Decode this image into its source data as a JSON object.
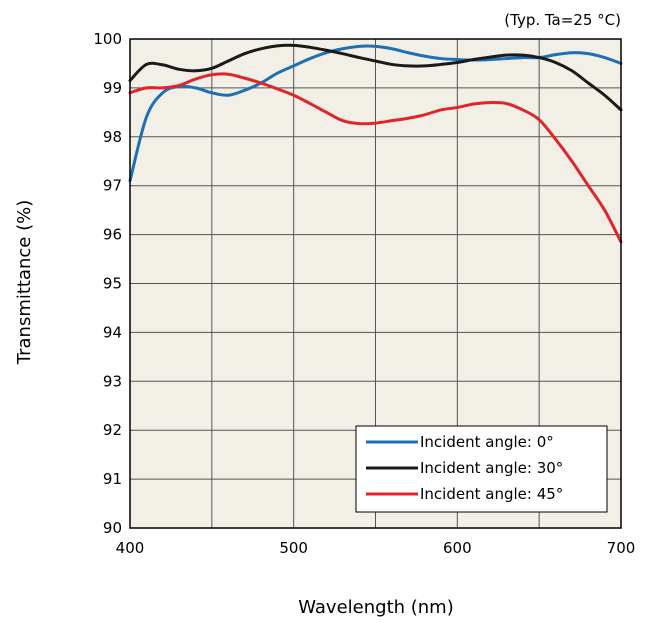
{
  "chart_data": {
    "type": "line",
    "title": "",
    "note": "(Typ. Ta=25 °C)",
    "xlabel": "Wavelength (nm)",
    "ylabel": "Transmittance (%)",
    "xlim": [
      400,
      700
    ],
    "ylim": [
      90,
      100
    ],
    "x_ticks": [
      400,
      500,
      600,
      700
    ],
    "x_gridlines": [
      400,
      450,
      500,
      550,
      600,
      650,
      700
    ],
    "y_ticks": [
      90,
      91,
      92,
      93,
      94,
      95,
      96,
      97,
      98,
      99,
      100
    ],
    "grid": true,
    "plot_background": "#f1efe6",
    "legend_position": "bottom-right",
    "series": [
      {
        "name": "Incident angle: 0°",
        "color": "#1f6fb4",
        "x": [
          400,
          410,
          420,
          430,
          440,
          450,
          460,
          470,
          480,
          490,
          500,
          510,
          520,
          530,
          540,
          550,
          560,
          570,
          580,
          590,
          600,
          610,
          620,
          630,
          640,
          650,
          660,
          670,
          680,
          690,
          700
        ],
        "y": [
          97.1,
          98.4,
          98.9,
          99.03,
          99.0,
          98.9,
          98.85,
          98.95,
          99.1,
          99.3,
          99.45,
          99.6,
          99.72,
          99.8,
          99.85,
          99.85,
          99.8,
          99.72,
          99.65,
          99.6,
          99.58,
          99.57,
          99.58,
          99.6,
          99.62,
          99.62,
          99.68,
          99.72,
          99.7,
          99.62,
          99.5
        ]
      },
      {
        "name": "Incident angle: 30°",
        "color": "#1a1a1a",
        "x": [
          400,
          410,
          420,
          430,
          440,
          450,
          460,
          470,
          480,
          490,
          500,
          510,
          520,
          530,
          540,
          550,
          560,
          570,
          580,
          590,
          600,
          610,
          620,
          630,
          640,
          650,
          660,
          670,
          680,
          690,
          700
        ],
        "y": [
          99.15,
          99.48,
          99.47,
          99.38,
          99.35,
          99.4,
          99.55,
          99.7,
          99.8,
          99.86,
          99.87,
          99.83,
          99.77,
          99.7,
          99.62,
          99.55,
          99.48,
          99.45,
          99.45,
          99.48,
          99.52,
          99.58,
          99.63,
          99.67,
          99.67,
          99.62,
          99.52,
          99.35,
          99.1,
          98.85,
          98.55
        ]
      },
      {
        "name": "Incident angle: 45°",
        "color": "#e0242a",
        "x": [
          400,
          410,
          420,
          430,
          440,
          450,
          460,
          470,
          480,
          490,
          500,
          510,
          520,
          530,
          540,
          550,
          560,
          570,
          580,
          590,
          600,
          610,
          620,
          630,
          640,
          650,
          660,
          670,
          680,
          690,
          700
        ],
        "y": [
          98.9,
          99.0,
          99.0,
          99.05,
          99.18,
          99.27,
          99.28,
          99.2,
          99.1,
          98.98,
          98.85,
          98.68,
          98.5,
          98.33,
          98.27,
          98.28,
          98.33,
          98.38,
          98.45,
          98.55,
          98.6,
          98.67,
          98.7,
          98.68,
          98.55,
          98.35,
          97.95,
          97.5,
          97.0,
          96.5,
          95.85
        ]
      }
    ]
  }
}
